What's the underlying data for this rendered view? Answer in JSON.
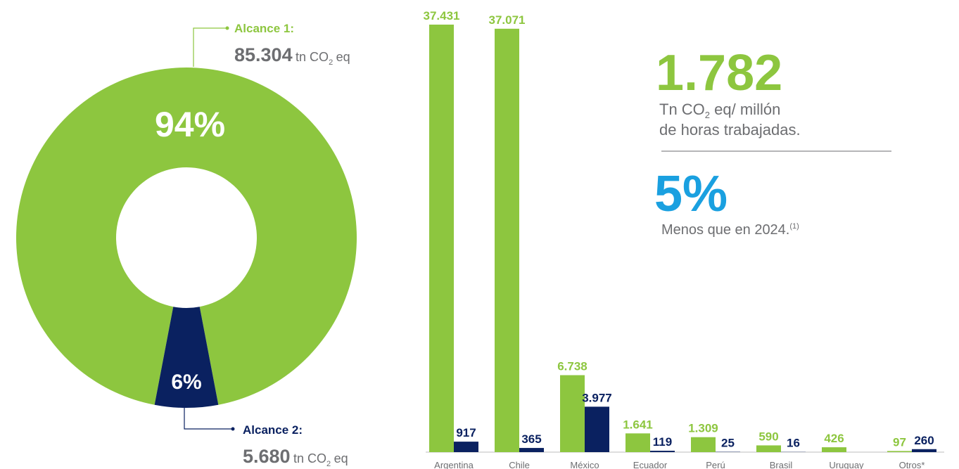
{
  "chart_data": [
    {
      "type": "pie",
      "donut": true,
      "values": [
        94,
        6
      ],
      "value_labels": [
        "94%",
        "6%"
      ],
      "colors": [
        "#8dc63f",
        "#0a2160"
      ],
      "annotations": [
        {
          "label": "Alcance 1:",
          "value_text": "85.304",
          "unit": "tn CO",
          "unit_sub": "2",
          "unit_end": "eq"
        },
        {
          "label": "Alcance 2:",
          "value_text": "5.680",
          "unit": "tn CO",
          "unit_sub": "2",
          "unit_end": "eq"
        }
      ]
    },
    {
      "type": "bar",
      "categories": [
        "Argentina",
        "Chile",
        "México",
        "Ecuador",
        "Perú",
        "Brasil",
        "Uruguay",
        "Otros*"
      ],
      "series": [
        {
          "color": "#8dc63f",
          "values": [
            37431,
            37071,
            6738,
            1641,
            1309,
            590,
            426,
            97
          ],
          "value_labels": [
            "37.431",
            "37.071",
            "6.738",
            "1.641",
            "1.309",
            "590",
            "426",
            "97"
          ]
        },
        {
          "color": "#0a2160",
          "values": [
            917,
            365,
            3977,
            119,
            25,
            16,
            null,
            260
          ],
          "value_labels": [
            "917",
            "365",
            "3.977",
            "119",
            "25",
            "16",
            null,
            "260"
          ]
        }
      ]
    }
  ],
  "highlights": {
    "intensity": {
      "value_text": "1.782",
      "line1": "Tn CO",
      "line1_sub": "2",
      "line1_end": "eq/ millón",
      "line2": "de horas trabajadas."
    },
    "change": {
      "value_text": "5%",
      "text": "Menos que en 2024.",
      "note": "(1)"
    }
  }
}
